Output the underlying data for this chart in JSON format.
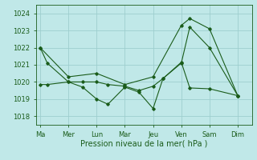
{
  "bg_color": "#c0e8e8",
  "grid_color": "#9ecece",
  "line_color": "#1a5c1a",
  "xlabel": "Pression niveau de la mer( hPa )",
  "xlabel_fontsize": 7,
  "tick_fontsize": 6,
  "ylim": [
    1017.5,
    1024.5
  ],
  "yticks": [
    1018,
    1019,
    1020,
    1021,
    1022,
    1023,
    1024
  ],
  "xtick_labels": [
    "Ma",
    "Mer",
    "Lun",
    "Mar",
    "Jeu",
    "Ven",
    "Sam",
    "Dim"
  ],
  "xtick_positions": [
    0,
    1,
    2,
    3,
    4,
    5,
    6,
    7
  ],
  "xlim": [
    -0.15,
    7.5
  ],
  "series": [
    {
      "x": [
        0,
        0.25,
        1.0,
        1.5,
        2.0,
        2.4,
        3.0,
        3.5,
        4.0,
        4.35,
        5.0,
        5.3,
        6.0,
        7.0
      ],
      "y": [
        1022.0,
        1021.1,
        1020.0,
        1019.7,
        1019.0,
        1018.7,
        1019.7,
        1019.4,
        1018.45,
        1020.2,
        1021.1,
        1023.2,
        1022.0,
        1019.2
      ]
    },
    {
      "x": [
        0,
        0.25,
        1.0,
        1.5,
        2.0,
        2.4,
        3.0,
        3.5,
        4.0,
        4.35,
        5.0,
        5.3,
        6.0,
        7.0
      ],
      "y": [
        1019.85,
        1019.85,
        1020.0,
        1020.0,
        1020.0,
        1019.85,
        1019.75,
        1019.5,
        1019.75,
        1020.2,
        1021.15,
        1019.65,
        1019.6,
        1019.2
      ]
    },
    {
      "x": [
        0,
        1.0,
        2.0,
        3.0,
        4.0,
        5.0,
        5.3,
        6.0,
        7.0
      ],
      "y": [
        1022.0,
        1020.3,
        1020.5,
        1019.85,
        1020.3,
        1023.3,
        1023.7,
        1023.1,
        1019.2
      ]
    }
  ]
}
